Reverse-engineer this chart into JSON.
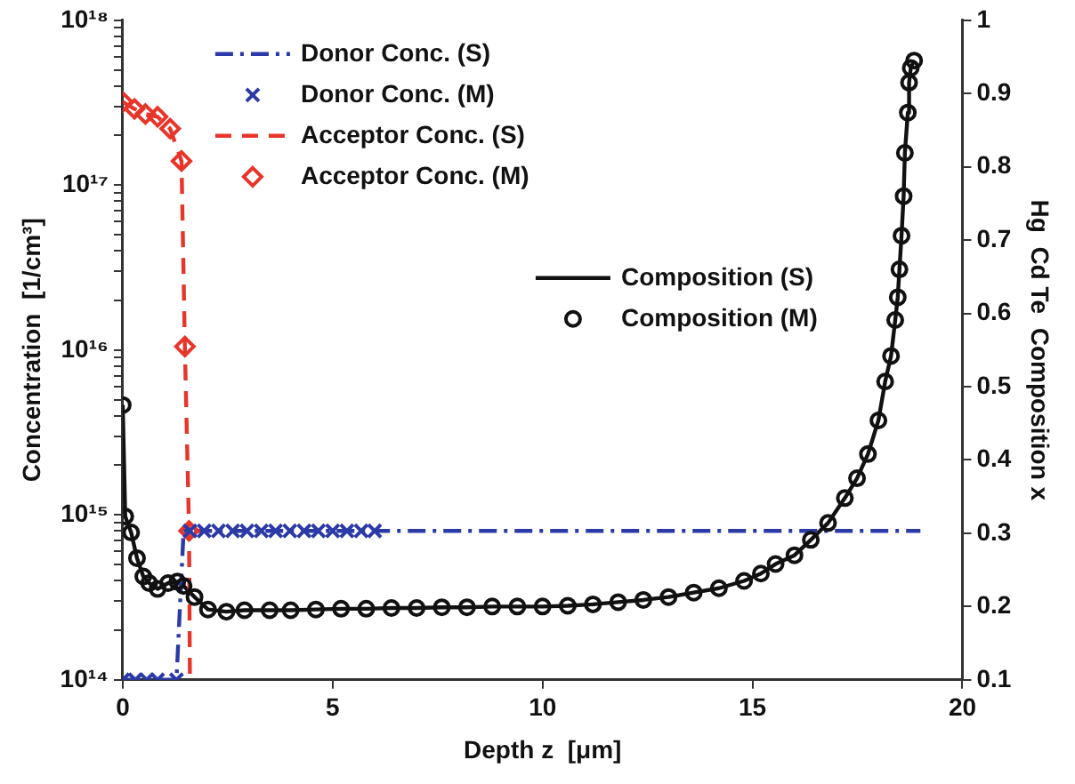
{
  "chart_data": {
    "type": "line",
    "xlabel": "Depth z  [μm]",
    "ylabel": "Concentration  [1/cm³]",
    "y2label": "Hg  Cd Te  Composition x",
    "xlim": [
      0,
      20
    ],
    "xticks": [
      0,
      5,
      10,
      15,
      20
    ],
    "log": "y",
    "ylim": [
      100000000000000.0,
      1e+18
    ],
    "yticks": [
      {
        "value": 100000000000000.0,
        "label": "10¹⁴"
      },
      {
        "value": 200000000000000.0,
        "label": null
      },
      {
        "value": 300000000000000.0,
        "label": null
      },
      {
        "value": 400000000000000.0,
        "label": null
      },
      {
        "value": 500000000000000.0,
        "label": null
      },
      {
        "value": 600000000000000.0,
        "label": null
      },
      {
        "value": 700000000000000.0,
        "label": null
      },
      {
        "value": 800000000000000.0,
        "label": null
      },
      {
        "value": 900000000000000.0,
        "label": null
      },
      {
        "value": 1000000000000000.0,
        "label": "10¹⁵"
      },
      {
        "value": 2000000000000000.0,
        "label": null
      },
      {
        "value": 3000000000000000.0,
        "label": null
      },
      {
        "value": 4000000000000000.0,
        "label": null
      },
      {
        "value": 5000000000000000.0,
        "label": null
      },
      {
        "value": 6000000000000000.0,
        "label": null
      },
      {
        "value": 7000000000000000.0,
        "label": null
      },
      {
        "value": 8000000000000000.0,
        "label": null
      },
      {
        "value": 9000000000000000.0,
        "label": null
      },
      {
        "value": 1e+16,
        "label": "10¹⁶"
      },
      {
        "value": 2e+16,
        "label": null
      },
      {
        "value": 3e+16,
        "label": null
      },
      {
        "value": 4e+16,
        "label": null
      },
      {
        "value": 5e+16,
        "label": null
      },
      {
        "value": 6e+16,
        "label": null
      },
      {
        "value": 7e+16,
        "label": null
      },
      {
        "value": 8e+16,
        "label": null
      },
      {
        "value": 9e+16,
        "label": null
      },
      {
        "value": 1e+17,
        "label": "10¹⁷"
      },
      {
        "value": 2e+17,
        "label": null
      },
      {
        "value": 3e+17,
        "label": null
      },
      {
        "value": 4e+17,
        "label": null
      },
      {
        "value": 5e+17,
        "label": null
      },
      {
        "value": 6e+17,
        "label": null
      },
      {
        "value": 7e+17,
        "label": null
      },
      {
        "value": 8e+17,
        "label": null
      },
      {
        "value": 9e+17,
        "label": null
      },
      {
        "value": 1e+18,
        "label": "10¹⁸"
      }
    ],
    "y2lim": [
      0.1,
      1
    ],
    "y2ticks": [
      0.1,
      0.2,
      0.3,
      0.4,
      0.5,
      0.6,
      0.7,
      0.8,
      0.9,
      1
    ],
    "grid": false,
    "legend": "top",
    "series": [
      {
        "name": "Donor Conc. (S)",
        "type": "line",
        "color": "#2b3aa6",
        "line_style": "dashdot",
        "marker": "none",
        "x": [
          0,
          1.28,
          1.45,
          19
        ],
        "values": [
          100000000000000.0,
          100000000000000.0,
          800000000000000.0,
          800000000000000.0
        ]
      },
      {
        "name": "Donor Conc. (M)",
        "type": "scatter",
        "color": "#2b3aa6",
        "marker": "cross",
        "x": [
          0,
          0.3,
          0.57,
          0.83,
          1.28,
          1.6,
          1.94,
          2.28,
          2.62,
          2.96,
          3.3,
          3.64,
          3.98,
          4.32,
          4.66,
          5.0,
          5.34,
          5.68,
          6.0
        ],
        "values": [
          100000000000000.0,
          100000000000000.0,
          100000000000000.0,
          100000000000000.0,
          100000000000000.0,
          800000000000000.0,
          800000000000000.0,
          800000000000000.0,
          800000000000000.0,
          800000000000000.0,
          800000000000000.0,
          800000000000000.0,
          800000000000000.0,
          800000000000000.0,
          800000000000000.0,
          800000000000000.0,
          800000000000000.0,
          800000000000000.0,
          800000000000000.0
        ]
      },
      {
        "name": "Acceptor Conc. (S)",
        "type": "line",
        "color": "#e8352a",
        "line_style": "dashed",
        "marker": "none",
        "x": [
          0,
          0.28,
          0.54,
          0.83,
          1.13,
          1.4,
          1.48,
          1.58,
          1.6
        ],
        "values": [
          3.2e+17,
          2.9e+17,
          2.7e+17,
          2.6e+17,
          2.2e+17,
          1.4e+17,
          1.05e+16,
          800000000000000.0,
          100000000000000.0
        ]
      },
      {
        "name": "Acceptor Conc. (M)",
        "type": "scatter",
        "color": "#e8352a",
        "marker": "diamond",
        "x": [
          0,
          0.28,
          0.54,
          0.83,
          1.13,
          1.4,
          1.48,
          1.58
        ],
        "values": [
          3.2e+17,
          2.9e+17,
          2.7e+17,
          2.6e+17,
          2.2e+17,
          1.4e+17,
          1.05e+16,
          800000000000000.0
        ]
      },
      {
        "name": "Composition (S)",
        "type": "line",
        "axis": "y2",
        "color": "#111111",
        "line_style": "solid",
        "marker": "none",
        "x": [
          0,
          0.06,
          0.2,
          0.34,
          0.49,
          0.63,
          0.83,
          1.08,
          1.3,
          1.45,
          1.71,
          2.03,
          2.47,
          2.9,
          3.5,
          4.0,
          4.6,
          5.2,
          5.8,
          6.4,
          7.0,
          7.6,
          8.2,
          8.8,
          9.4,
          10.0,
          10.6,
          11.2,
          11.8,
          12.4,
          13.0,
          13.6,
          14.2,
          14.8,
          15.2,
          15.55,
          16.0,
          16.39,
          16.8,
          17.2,
          17.49,
          17.75,
          18.0,
          18.16,
          18.3,
          18.4,
          18.46,
          18.5,
          18.55,
          18.6,
          18.63,
          18.7,
          18.73,
          18.77,
          18.85
        ],
        "values": [
          0.475,
          0.323,
          0.301,
          0.266,
          0.241,
          0.232,
          0.224,
          0.232,
          0.234,
          0.228,
          0.213,
          0.196,
          0.193,
          0.195,
          0.195,
          0.195,
          0.196,
          0.197,
          0.197,
          0.198,
          0.198,
          0.199,
          0.199,
          0.2,
          0.2,
          0.2,
          0.201,
          0.203,
          0.206,
          0.209,
          0.213,
          0.219,
          0.225,
          0.235,
          0.245,
          0.258,
          0.27,
          0.291,
          0.314,
          0.348,
          0.375,
          0.408,
          0.454,
          0.507,
          0.542,
          0.591,
          0.622,
          0.66,
          0.706,
          0.76,
          0.819,
          0.874,
          0.915,
          0.935,
          0.945
        ]
      },
      {
        "name": "Composition (M)",
        "type": "scatter",
        "axis": "y2",
        "color": "#111111",
        "marker": "circle",
        "x": [
          0,
          0.06,
          0.2,
          0.34,
          0.49,
          0.63,
          0.83,
          1.08,
          1.3,
          1.45,
          1.71,
          2.03,
          2.47,
          2.9,
          3.5,
          4.0,
          4.6,
          5.2,
          5.8,
          6.4,
          7.0,
          7.6,
          8.2,
          8.8,
          9.4,
          10.0,
          10.6,
          11.2,
          11.8,
          12.4,
          13.0,
          13.6,
          14.2,
          14.8,
          15.2,
          15.55,
          16.0,
          16.39,
          16.8,
          17.2,
          17.49,
          17.75,
          18.0,
          18.16,
          18.3,
          18.4,
          18.46,
          18.5,
          18.55,
          18.6,
          18.63,
          18.7,
          18.73,
          18.77,
          18.85
        ],
        "values": [
          0.475,
          0.323,
          0.301,
          0.266,
          0.241,
          0.232,
          0.224,
          0.232,
          0.234,
          0.228,
          0.213,
          0.196,
          0.193,
          0.195,
          0.195,
          0.195,
          0.196,
          0.197,
          0.197,
          0.198,
          0.198,
          0.199,
          0.199,
          0.2,
          0.2,
          0.2,
          0.201,
          0.203,
          0.206,
          0.209,
          0.213,
          0.219,
          0.225,
          0.235,
          0.245,
          0.258,
          0.27,
          0.291,
          0.314,
          0.348,
          0.375,
          0.408,
          0.454,
          0.507,
          0.542,
          0.591,
          0.622,
          0.66,
          0.706,
          0.76,
          0.819,
          0.874,
          0.915,
          0.935,
          0.945
        ]
      }
    ]
  }
}
